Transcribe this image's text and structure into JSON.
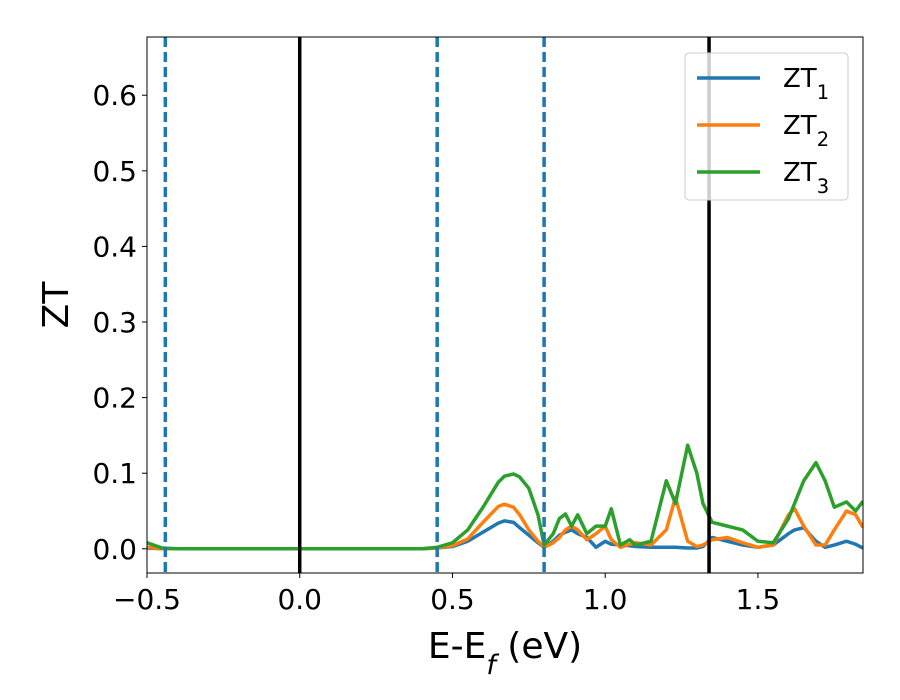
{
  "chart_data": {
    "type": "line",
    "xlabel": "E-E_f (eV)",
    "ylabel": "ZT",
    "xlim": [
      -0.5,
      1.844
    ],
    "ylim": [
      -0.032,
      0.677
    ],
    "xticks": [
      {
        "value": -0.5,
        "label": "−0.5"
      },
      {
        "value": 0,
        "label": "0.0"
      },
      {
        "value": 0.5,
        "label": "0.5"
      },
      {
        "value": 1,
        "label": "1.0"
      },
      {
        "value": 1.5,
        "label": "1.5"
      }
    ],
    "yticks": [
      {
        "value": 0,
        "label": "0.0"
      },
      0.1,
      0.2,
      0.3,
      0.4,
      0.5,
      0.6
    ],
    "legend": "upper right",
    "grid": false,
    "x": [
      -0.5,
      -0.45,
      -0.4,
      -0.3,
      -0.2,
      -0.1,
      0,
      0.1,
      0.2,
      0.3,
      0.4,
      0.45,
      0.5,
      0.55,
      0.6,
      0.65,
      0.67,
      0.7,
      0.72,
      0.75,
      0.78,
      0.8,
      0.83,
      0.85,
      0.87,
      0.89,
      0.91,
      0.94,
      0.97,
      1.0,
      1.02,
      1.05,
      1.08,
      1.1,
      1.15,
      1.2,
      1.23,
      1.27,
      1.3,
      1.32,
      1.35,
      1.4,
      1.45,
      1.5,
      1.55,
      1.6,
      1.62,
      1.65,
      1.69,
      1.72,
      1.75,
      1.79,
      1.82,
      1.844
    ],
    "series": [
      {
        "name": "ZT_1",
        "color": "#1f77b4",
        "values": [
          0.001,
          0,
          0,
          0,
          0,
          0,
          0,
          0,
          0,
          0,
          0,
          0.001,
          0.003,
          0.01,
          0.022,
          0.034,
          0.037,
          0.035,
          0.028,
          0.018,
          0.008,
          0.002,
          0.01,
          0.018,
          0.022,
          0.025,
          0.02,
          0.015,
          0.002,
          0.01,
          0.006,
          0.005,
          0.004,
          0.003,
          0.002,
          0.002,
          0.002,
          0.001,
          0.001,
          0.003,
          0.015,
          0.01,
          0.005,
          0.002,
          0.005,
          0.02,
          0.025,
          0.028,
          0.01,
          0.002,
          0.005,
          0.01,
          0.006,
          0.001
        ]
      },
      {
        "name": "ZT_2",
        "color": "#ff7f0e",
        "values": [
          0.002,
          0,
          0,
          0,
          0,
          0,
          0,
          0,
          0,
          0,
          0,
          0.001,
          0.004,
          0.013,
          0.035,
          0.056,
          0.059,
          0.055,
          0.045,
          0.025,
          0.01,
          0.002,
          0.008,
          0.015,
          0.025,
          0.03,
          0.025,
          0.012,
          0.02,
          0.03,
          0.012,
          0.002,
          0.006,
          0.008,
          0.005,
          0.025,
          0.068,
          0.01,
          0.003,
          0.005,
          0.012,
          0.015,
          0.008,
          0.002,
          0.005,
          0.045,
          0.053,
          0.03,
          0.005,
          0.005,
          0.025,
          0.05,
          0.045,
          0.028
        ]
      },
      {
        "name": "ZT_3",
        "color": "#2ca02c",
        "values": [
          0.008,
          0.001,
          0,
          0,
          0,
          0,
          0,
          0,
          0,
          0,
          0,
          0.002,
          0.008,
          0.025,
          0.055,
          0.088,
          0.096,
          0.099,
          0.095,
          0.08,
          0.045,
          0.005,
          0.02,
          0.04,
          0.046,
          0.03,
          0.045,
          0.02,
          0.03,
          0.03,
          0.053,
          0.005,
          0.012,
          0.005,
          0.01,
          0.09,
          0.06,
          0.137,
          0.1,
          0.06,
          0.035,
          0.03,
          0.025,
          0.01,
          0.008,
          0.04,
          0.06,
          0.09,
          0.114,
          0.09,
          0.055,
          0.062,
          0.05,
          0.063
        ]
      }
    ],
    "vlines": [
      {
        "x": -0.44,
        "color": "#1f77b4",
        "style": "dashed"
      },
      {
        "x": 0,
        "color": "#000000",
        "style": "solid"
      },
      {
        "x": 0.45,
        "color": "#1f77b4",
        "style": "dashed"
      },
      {
        "x": 0.8,
        "color": "#1f77b4",
        "style": "dashed"
      },
      {
        "x": 1.34,
        "color": "#000000",
        "style": "solid"
      }
    ]
  }
}
